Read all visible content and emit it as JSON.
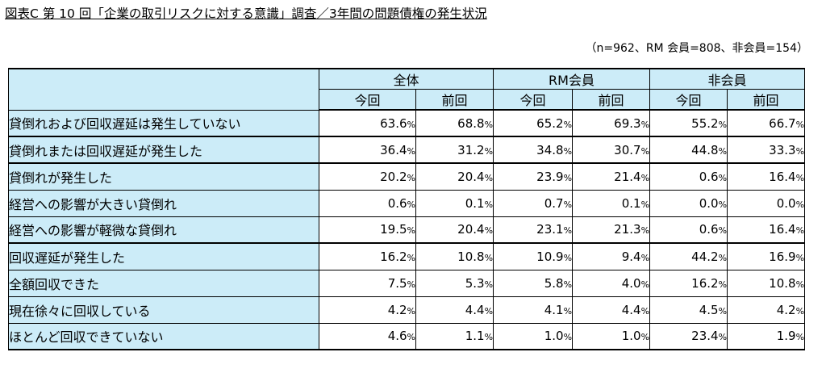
{
  "title": "図表C 第 10 回「企業の取引リスクに対する意識」調査／3年間の問題債権の発生状況",
  "note": "（n=962、RM 会員=808、非会員=154）",
  "groups": [
    "全体",
    "RM会員",
    "非会員"
  ],
  "subheaders": [
    "今回",
    "前回",
    "今回",
    "前回",
    "今回",
    "前回"
  ],
  "rows": [
    {
      "label": "貸倒れおよび回収遅延は発生していない",
      "level": 0,
      "values": [
        "63.6",
        "68.8",
        "65.2",
        "69.3",
        "55.2",
        "66.7"
      ]
    },
    {
      "label": "貸倒れまたは回収遅延が発生した",
      "level": 0,
      "values": [
        "36.4",
        "31.2",
        "34.8",
        "30.7",
        "44.8",
        "33.3"
      ]
    },
    {
      "label": "貸倒れが発生した",
      "level": 1,
      "values": [
        "20.2",
        "20.4",
        "23.9",
        "21.4",
        "0.6",
        "16.4"
      ]
    },
    {
      "label": "経営への影響が大きい貸倒れ",
      "level": 2,
      "values": [
        "0.6",
        "0.1",
        "0.7",
        "0.1",
        "0.0",
        "0.0"
      ]
    },
    {
      "label": "経営への影響が軽微な貸倒れ",
      "level": 2,
      "values": [
        "19.5",
        "20.4",
        "23.1",
        "21.3",
        "0.6",
        "16.4"
      ]
    },
    {
      "label": "回収遅延が発生した",
      "level": 1,
      "values": [
        "16.2",
        "10.8",
        "10.9",
        "9.4",
        "44.2",
        "16.9"
      ]
    },
    {
      "label": "全額回収できた",
      "level": 2,
      "values": [
        "7.5",
        "5.3",
        "5.8",
        "4.0",
        "16.2",
        "10.8"
      ]
    },
    {
      "label": "現在徐々に回収している",
      "level": 2,
      "values": [
        "4.2",
        "4.4",
        "4.1",
        "4.4",
        "4.5",
        "4.2"
      ]
    },
    {
      "label": "ほとんど回収できていない",
      "level": 2,
      "values": [
        "4.6",
        "1.1",
        "1.0",
        "1.0",
        "23.4",
        "1.9"
      ]
    }
  ],
  "percent_sign": "%"
}
